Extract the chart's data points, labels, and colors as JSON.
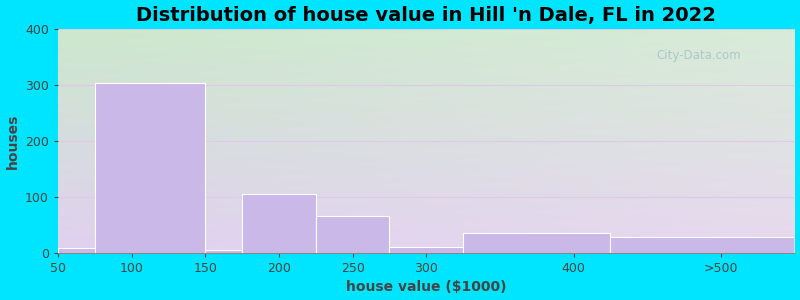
{
  "title": "Distribution of house value in Hill 'n Dale, FL in 2022",
  "xlabel": "house value ($1000)",
  "ylabel": "houses",
  "tick_positions": [
    50,
    100,
    150,
    200,
    250,
    300,
    400,
    500
  ],
  "tick_labels": [
    "50",
    "100",
    "150",
    "200",
    "250",
    "300",
    "400",
    ">500"
  ],
  "bar_lefts": [
    50,
    75,
    150,
    175,
    225,
    275,
    325,
    425
  ],
  "bar_rights": [
    125,
    150,
    175,
    225,
    275,
    325,
    425,
    550
  ],
  "bar_values": [
    8,
    303,
    5,
    105,
    65,
    10,
    35,
    28
  ],
  "bar_color": "#c9b8e8",
  "bar_edge_color": "#ffffff",
  "ylim": [
    0,
    400
  ],
  "yticks": [
    0,
    100,
    200,
    300,
    400
  ],
  "xlim": [
    50,
    550
  ],
  "background_outer": "#00e5ff",
  "grad_top_left": "#cce8cc",
  "grad_bottom_right": "#e8d8f0",
  "grid_color": "#e0c8e8",
  "title_fontsize": 14,
  "axis_fontsize": 10,
  "tick_fontsize": 9,
  "watermark_text": "City-Data.com"
}
